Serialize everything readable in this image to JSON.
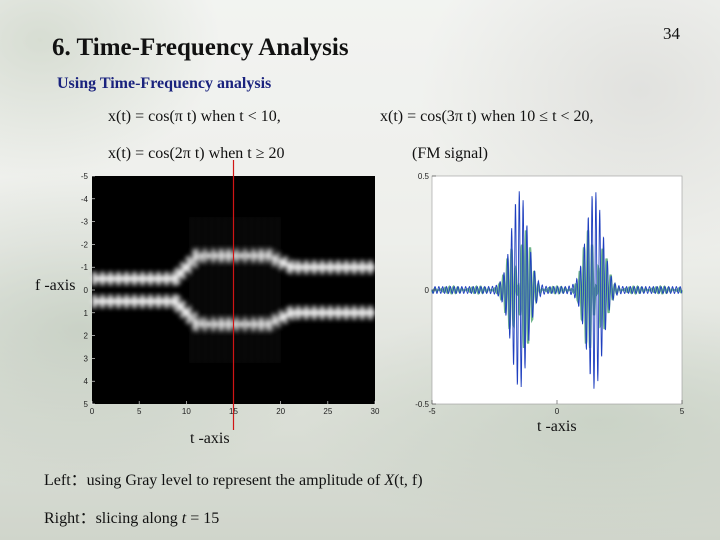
{
  "page_number": "34",
  "title": "6. Time-Frequency Analysis",
  "subtitle": "Using Time-Frequency analysis",
  "equations": {
    "eq1": "x(t) = cos(π t) when t < 10,",
    "eq2": "x(t) = cos(3π t) when 10 ≤ t < 20,",
    "eq3": "x(t) = cos(2π t) when t ≥ 20",
    "eq4": "(FM signal)"
  },
  "colors": {
    "slice_line": "#d01515",
    "signal_blue": "#1f3fbf",
    "signal_green": "#6fb58a"
  },
  "chart_data": [
    {
      "type": "heatmap",
      "title": "",
      "xlabel": "t -axis",
      "ylabel": "f -axis",
      "xlim": [
        0,
        30
      ],
      "ylim": [
        -5,
        5
      ],
      "x_ticks": [
        "0",
        "5",
        "10",
        "15",
        "20",
        "25",
        "30"
      ],
      "y_ticks": [
        "-5",
        "-4",
        "-3",
        "-2",
        "-1",
        "0",
        "1",
        "2",
        "3",
        "4",
        "5"
      ],
      "bands": [
        {
          "t_start": 0,
          "t_end": 10,
          "frequency": 0.5
        },
        {
          "t_start": 10,
          "t_end": 20,
          "frequency": 1.5
        },
        {
          "t_start": 20,
          "t_end": 30,
          "frequency": 1
        }
      ],
      "slice_at_t": 15
    },
    {
      "type": "line",
      "title": "",
      "xlabel": "t -axis",
      "xlim": [
        -5,
        5
      ],
      "ylim": [
        -0.5,
        0.5
      ],
      "x_ticks": [
        "-5",
        "0",
        "5"
      ],
      "y_ticks": [
        "0.5",
        "0",
        "-0.5"
      ],
      "peaks_at_f": [
        -1.5,
        1.5
      ]
    }
  ],
  "captions": {
    "left_prefix": "Left：using Gray level to represent the amplitude of ",
    "left_X": "X",
    "left_args": "(t, f)",
    "right_prefix": "Right：slicing along ",
    "right_t": "t",
    "right_eq": " = 15"
  }
}
